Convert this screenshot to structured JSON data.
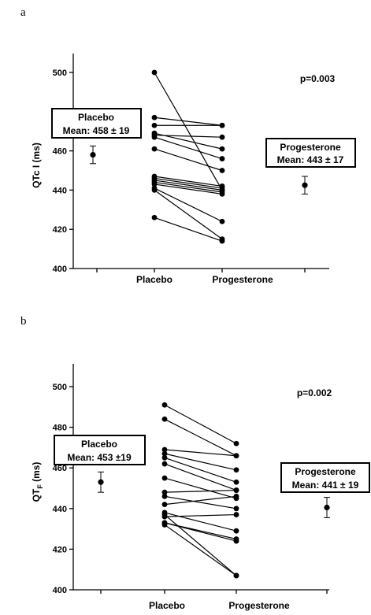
{
  "chart_data": [
    {
      "type": "scatter",
      "panel_label": "a",
      "ylabel_main": "QTc I",
      "ylabel_sub": "",
      "ylabel_unit": "(ms)",
      "categories": [
        "Placebo",
        "Progesterone"
      ],
      "ylim": [
        400,
        500
      ],
      "yticks": [
        400,
        420,
        440,
        460,
        480,
        500
      ],
      "p_value_text": "p=0.003",
      "pairs": [
        [
          500,
          440
        ],
        [
          477,
          473
        ],
        [
          473,
          473
        ],
        [
          469,
          461
        ],
        [
          468,
          467
        ],
        [
          467,
          456
        ],
        [
          461,
          450
        ],
        [
          447,
          442
        ],
        [
          446,
          441
        ],
        [
          445,
          440
        ],
        [
          444,
          439
        ],
        [
          441,
          424
        ],
        [
          443,
          438
        ],
        [
          440,
          415
        ],
        [
          426,
          414
        ]
      ],
      "placebo_summary": {
        "box_title": "Placebo",
        "box_stat": "Mean: 458 ± 19",
        "mean": 458,
        "err": 4.5
      },
      "progesterone_summary": {
        "box_title": "Progesterone",
        "box_stat": "Mean: 443 ± 17",
        "mean": 442.5,
        "err": 4.5
      }
    },
    {
      "type": "scatter",
      "panel_label": "b",
      "ylabel_main": "QT",
      "ylabel_sub": "F",
      "ylabel_unit": "(ms)",
      "categories": [
        "Placebo",
        "Progesterone"
      ],
      "ylim": [
        400,
        500
      ],
      "yticks": [
        400,
        420,
        440,
        460,
        480,
        500
      ],
      "p_value_text": "p=0.002",
      "pairs": [
        [
          491,
          472
        ],
        [
          484,
          466
        ],
        [
          469,
          466
        ],
        [
          467,
          459
        ],
        [
          465,
          453
        ],
        [
          462,
          449
        ],
        [
          455,
          445
        ],
        [
          448,
          449
        ],
        [
          446,
          440
        ],
        [
          442,
          446
        ],
        [
          438,
          429
        ],
        [
          436,
          437
        ],
        [
          433,
          425
        ],
        [
          433,
          424
        ],
        [
          432,
          407
        ],
        [
          437,
          407
        ]
      ],
      "placebo_summary": {
        "box_title": "Placebo",
        "box_stat": "Mean: 453 ±19",
        "mean": 453,
        "err": 5
      },
      "progesterone_summary": {
        "box_title": "Progesterone",
        "box_stat": "Mean: 441 ± 19",
        "mean": 440.5,
        "err": 5
      }
    }
  ]
}
